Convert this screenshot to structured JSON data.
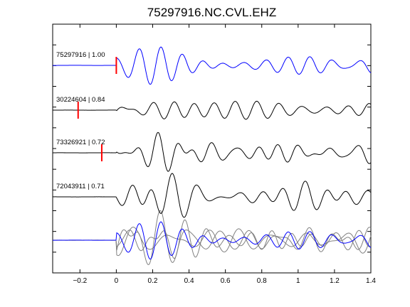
{
  "chart_data": {
    "type": "line",
    "title": "75297916.NC.CVL.EHZ",
    "xlabel": "",
    "ylabel": "",
    "xlim": [
      -0.35,
      1.4
    ],
    "x_ticks": [
      -0.2,
      0,
      0.2,
      0.4,
      0.6,
      0.8,
      1,
      1.2,
      1.4
    ],
    "x_tick_labels": [
      "−0.2",
      "0",
      "0.2",
      "0.4",
      "0.6",
      "0.8",
      "1",
      "1.2",
      "1.4"
    ],
    "grid": false,
    "colors": {
      "reference": "#0000ff",
      "trace": "#000000",
      "overlay": "#808080",
      "pick": "#ff0000"
    },
    "traces": [
      {
        "label": "75297916 | 1.00",
        "color": "#0000ff",
        "pick_time": 0.0,
        "seed": 1,
        "amp_scale": 1.0
      },
      {
        "label": "30224604 | 0.84",
        "color": "#000000",
        "pick_time": -0.21,
        "seed": 2,
        "amp_scale": 0.95
      },
      {
        "label": "73326921 | 0.72",
        "color": "#000000",
        "pick_time": -0.08,
        "seed": 3,
        "amp_scale": 0.95
      },
      {
        "label": "72043911 | 0.71",
        "color": "#000000",
        "pick_time": null,
        "seed": 4,
        "amp_scale": 0.9
      }
    ],
    "overlay_count": 3
  }
}
